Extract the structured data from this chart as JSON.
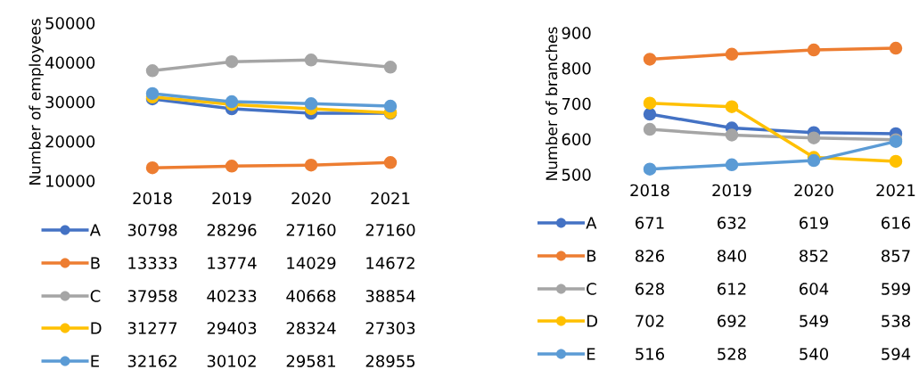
{
  "chart_data": [
    {
      "type": "line",
      "ylabel": "Number of employees",
      "categories": [
        "2018",
        "2019",
        "2020",
        "2021"
      ],
      "ylim": [
        10000,
        50000
      ],
      "yticks": [
        10000,
        20000,
        30000,
        40000,
        50000
      ],
      "marker": "circle",
      "data_labels": true,
      "legend": "bottom",
      "series": [
        {
          "name": "A",
          "color": "#4472c4",
          "values": [
            30798,
            28296,
            27160,
            27160
          ]
        },
        {
          "name": "B",
          "color": "#ed7d31",
          "values": [
            13333,
            13774,
            14029,
            14672
          ]
        },
        {
          "name": "C",
          "color": "#a5a5a5",
          "values": [
            37958,
            40233,
            40668,
            38854
          ]
        },
        {
          "name": "D",
          "color": "#ffc000",
          "values": [
            31277,
            29403,
            28324,
            27303
          ]
        },
        {
          "name": "E",
          "color": "#5b9bd5",
          "values": [
            32162,
            30102,
            29581,
            28955
          ]
        }
      ]
    },
    {
      "type": "line",
      "ylabel": "Number of branches",
      "categories": [
        "2018",
        "2019",
        "2020",
        "2021"
      ],
      "ylim": [
        500,
        900
      ],
      "yticks": [
        500,
        600,
        700,
        800,
        900
      ],
      "marker": "circle",
      "data_labels": true,
      "legend": "bottom",
      "series": [
        {
          "name": "A",
          "color": "#4472c4",
          "values": [
            671,
            632,
            619,
            616
          ]
        },
        {
          "name": "B",
          "color": "#ed7d31",
          "values": [
            826,
            840,
            852,
            857
          ]
        },
        {
          "name": "C",
          "color": "#a5a5a5",
          "values": [
            628,
            612,
            604,
            599
          ]
        },
        {
          "name": "D",
          "color": "#ffc000",
          "values": [
            702,
            692,
            549,
            538
          ]
        },
        {
          "name": "E",
          "color": "#5b9bd5",
          "values": [
            516,
            528,
            540,
            594
          ]
        }
      ]
    }
  ]
}
